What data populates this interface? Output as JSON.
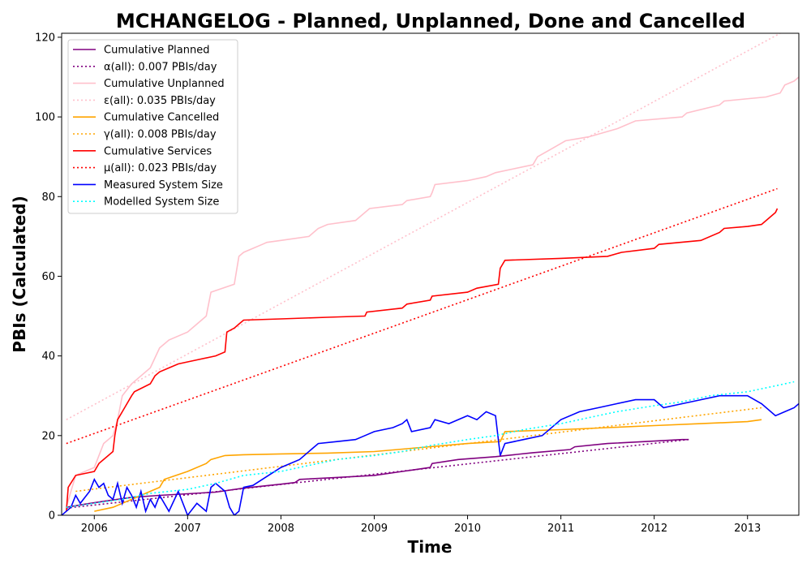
{
  "chart_data": {
    "type": "line",
    "title": "MCHANGELOG - Planned, Unplanned, Done  and Cancelled",
    "xlabel": "Time",
    "ylabel": "PBIs (Calculated)",
    "xlim": [
      2005.65,
      2013.55
    ],
    "ylim": [
      0,
      121
    ],
    "x_ticks": [
      2006,
      2007,
      2008,
      2009,
      2010,
      2011,
      2012,
      2013
    ],
    "x_tick_labels": [
      "2006",
      "2007",
      "2008",
      "2009",
      "2010",
      "2011",
      "2012",
      "2013"
    ],
    "y_ticks": [
      0,
      20,
      40,
      60,
      80,
      100,
      120
    ],
    "y_tick_labels": [
      "0",
      "20",
      "40",
      "60",
      "80",
      "100",
      "120"
    ],
    "legend_position": "top-left",
    "grid": false,
    "series": [
      {
        "name": "Cumulative Planned",
        "color": "#800080",
        "style": "solid",
        "x": [
          2005.7,
          2005.9,
          2006.1,
          2006.4,
          2006.7,
          2007.0,
          2007.3,
          2007.6,
          2008.0,
          2008.15,
          2008.2,
          2008.6,
          2009.0,
          2009.3,
          2009.6,
          2009.62,
          2009.9,
          2010.3,
          2010.7,
          2011.1,
          2011.15,
          2011.5,
          2011.9,
          2012.3,
          2012.37
        ],
        "y": [
          2,
          2.8,
          3.5,
          4.5,
          5.0,
          5.4,
          5.8,
          6.8,
          7.8,
          8.2,
          9,
          9.5,
          10,
          11,
          12,
          13,
          14,
          14.7,
          15.7,
          16.5,
          17.2,
          18.0,
          18.5,
          19,
          19
        ]
      },
      {
        "name": "α(all): 0.007 PBIs/day",
        "color": "#800080",
        "style": "dotted",
        "x": [
          2005.7,
          2012.37
        ],
        "y": [
          1.8,
          19
        ]
      },
      {
        "name": "Cumulative Unplanned",
        "color": "#ffc0cb",
        "style": "solid",
        "x": [
          2005.7,
          2005.75,
          2005.8,
          2006.0,
          2006.05,
          2006.1,
          2006.2,
          2006.25,
          2006.3,
          2006.4,
          2006.5,
          2006.6,
          2006.7,
          2006.75,
          2006.8,
          2007.0,
          2007.1,
          2007.2,
          2007.25,
          2007.5,
          2007.55,
          2007.6,
          2007.8,
          2007.85,
          2008.0,
          2008.3,
          2008.4,
          2008.5,
          2008.8,
          2008.95,
          2009.3,
          2009.35,
          2009.6,
          2009.62,
          2009.65,
          2010.0,
          2010.2,
          2010.3,
          2010.5,
          2010.7,
          2010.75,
          2010.9,
          2011.05,
          2011.3,
          2011.6,
          2011.8,
          2012.3,
          2012.35,
          2012.7,
          2012.75,
          2013.2,
          2013.35,
          2013.4,
          2013.5,
          2013.55
        ],
        "y": [
          2,
          6,
          10,
          12,
          15,
          18,
          20,
          24,
          30,
          33,
          35,
          37,
          42,
          43,
          44,
          46,
          48,
          50,
          56,
          58,
          65,
          66,
          68,
          68.5,
          69,
          70,
          72,
          73,
          74,
          77,
          78,
          79,
          80,
          81,
          83,
          84,
          85,
          86,
          87,
          88,
          90,
          92,
          94,
          95,
          97,
          99,
          100,
          101,
          103,
          104,
          105,
          106,
          108,
          109,
          110
        ]
      },
      {
        "name": "ε(all): 0.035 PBIs/day",
        "color": "#ffc0cb",
        "style": "dotted",
        "x": [
          2005.7,
          2013.35
        ],
        "y": [
          24,
          121
        ]
      },
      {
        "name": "Cumulative Cancelled",
        "color": "#ffa500",
        "style": "solid",
        "x": [
          2006.0,
          2006.2,
          2006.3,
          2006.5,
          2006.6,
          2006.7,
          2006.75,
          2007.0,
          2007.2,
          2007.25,
          2007.4,
          2007.6,
          2008.0,
          2008.5,
          2009.0,
          2009.5,
          2010.0,
          2010.35,
          2010.4,
          2011.0,
          2011.5,
          2012.0,
          2012.5,
          2013.0,
          2013.15
        ],
        "y": [
          1,
          2,
          3,
          5,
          6,
          7,
          9,
          11,
          13,
          14,
          15,
          15.2,
          15.4,
          15.6,
          16,
          17,
          18,
          18.5,
          21,
          21.5,
          22,
          22.5,
          23,
          23.5,
          24
        ]
      },
      {
        "name": "γ(all): 0.008 PBIs/day",
        "color": "#ffa500",
        "style": "dotted",
        "x": [
          2005.8,
          2013.15
        ],
        "y": [
          6,
          27
        ]
      },
      {
        "name": "Cumulative Services",
        "color": "#ff0000",
        "style": "solid",
        "x": [
          2005.7,
          2005.72,
          2005.8,
          2006.0,
          2006.05,
          2006.2,
          2006.22,
          2006.25,
          2006.3,
          2006.4,
          2006.43,
          2006.6,
          2006.65,
          2006.7,
          2006.8,
          2006.9,
          2007.0,
          2007.3,
          2007.4,
          2007.42,
          2007.5,
          2007.55,
          2007.6,
          2008.0,
          2008.5,
          2008.9,
          2008.92,
          2009.3,
          2009.35,
          2009.6,
          2009.62,
          2010.0,
          2010.1,
          2010.33,
          2010.35,
          2010.4,
          2011.0,
          2011.5,
          2011.65,
          2012.0,
          2012.05,
          2012.5,
          2012.7,
          2012.75,
          2013.0,
          2013.15,
          2013.3,
          2013.32
        ],
        "y": [
          1,
          7,
          10,
          11,
          13,
          16,
          20,
          24,
          26,
          30,
          31,
          33,
          35,
          36,
          37,
          38,
          38.5,
          40,
          41,
          46,
          47,
          48,
          49,
          49.3,
          49.7,
          50,
          51,
          52,
          53,
          54,
          55,
          56,
          57,
          58,
          62,
          64,
          64.5,
          65,
          66,
          67,
          68,
          69,
          71,
          72,
          72.5,
          73,
          76,
          77
        ]
      },
      {
        "name": "μ(all): 0.023 PBIs/day",
        "color": "#ff0000",
        "style": "dotted",
        "x": [
          2005.7,
          2013.32
        ],
        "y": [
          18,
          82
        ]
      },
      {
        "name": "Measured System Size",
        "color": "#0000ff",
        "style": "solid",
        "x": [
          2005.65,
          2005.75,
          2005.8,
          2005.85,
          2005.95,
          2006.0,
          2006.05,
          2006.1,
          2006.15,
          2006.2,
          2006.25,
          2006.3,
          2006.35,
          2006.4,
          2006.45,
          2006.5,
          2006.55,
          2006.6,
          2006.65,
          2006.7,
          2006.8,
          2006.9,
          2007.0,
          2007.1,
          2007.2,
          2007.25,
          2007.3,
          2007.4,
          2007.45,
          2007.5,
          2007.55,
          2007.6,
          2007.7,
          2007.8,
          2008.0,
          2008.2,
          2008.4,
          2008.6,
          2008.8,
          2008.9,
          2009.0,
          2009.2,
          2009.3,
          2009.35,
          2009.4,
          2009.6,
          2009.65,
          2009.8,
          2010.0,
          2010.1,
          2010.2,
          2010.3,
          2010.35,
          2010.4,
          2010.6,
          2010.8,
          2011.0,
          2011.2,
          2011.4,
          2011.6,
          2011.8,
          2012.0,
          2012.1,
          2012.3,
          2012.5,
          2012.7,
          2013.0,
          2013.15,
          2013.3,
          2013.4,
          2013.5,
          2013.55
        ],
        "y": [
          0,
          2,
          5,
          3,
          6,
          9,
          7,
          8,
          5,
          4,
          8,
          3,
          7,
          5,
          2,
          6,
          1,
          4,
          2,
          5,
          1,
          6,
          0,
          3,
          1,
          7,
          8,
          6,
          2,
          0,
          1,
          7,
          7.5,
          9,
          12,
          14,
          18,
          18.5,
          19,
          20,
          21,
          22,
          23,
          24,
          21,
          22,
          24,
          23,
          25,
          24,
          26,
          25,
          15,
          18,
          19,
          20,
          24,
          26,
          27,
          28,
          29,
          29,
          27,
          28,
          29,
          30,
          30,
          28,
          25,
          26,
          27,
          28
        ]
      },
      {
        "name": "Modelled System Size",
        "color": "#00ffff",
        "style": "dotted",
        "x": [
          2005.7,
          2006.0,
          2006.3,
          2006.6,
          2007.0,
          2007.3,
          2007.6,
          2008.0,
          2008.3,
          2008.6,
          2009.0,
          2009.3,
          2009.6,
          2010.0,
          2010.3,
          2010.6,
          2011.0,
          2011.3,
          2011.6,
          2012.0,
          2012.3,
          2012.6,
          2013.0,
          2013.3,
          2013.5
        ],
        "y": [
          2,
          3,
          4,
          5.5,
          6.5,
          8,
          10,
          11,
          12.5,
          14,
          15,
          16,
          17.5,
          19,
          20,
          21.5,
          23,
          24.5,
          26,
          27.5,
          28.5,
          30,
          31,
          32.5,
          33.5
        ]
      }
    ]
  }
}
